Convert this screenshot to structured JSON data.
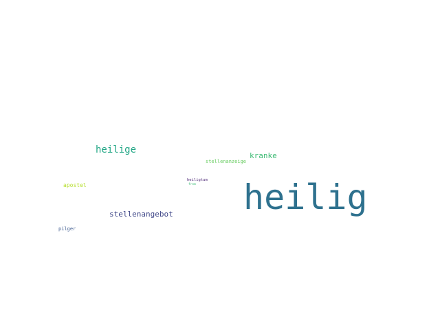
{
  "words": [
    {
      "text": "heilig",
      "color": "#2e718e"
    },
    {
      "text": "heilige",
      "color": "#21a685"
    },
    {
      "text": "kranke",
      "color": "#3dbb74"
    },
    {
      "text": "stellenanzeige",
      "color": "#65cb5e"
    },
    {
      "text": "stellenangebot",
      "color": "#3f4788"
    },
    {
      "text": "apostel",
      "color": "#b5de2b"
    },
    {
      "text": "heiligtum",
      "color": "#482173"
    },
    {
      "text": "from",
      "color": "#3bbb75"
    },
    {
      "text": "pilger",
      "color": "#3e5b8f"
    }
  ]
}
